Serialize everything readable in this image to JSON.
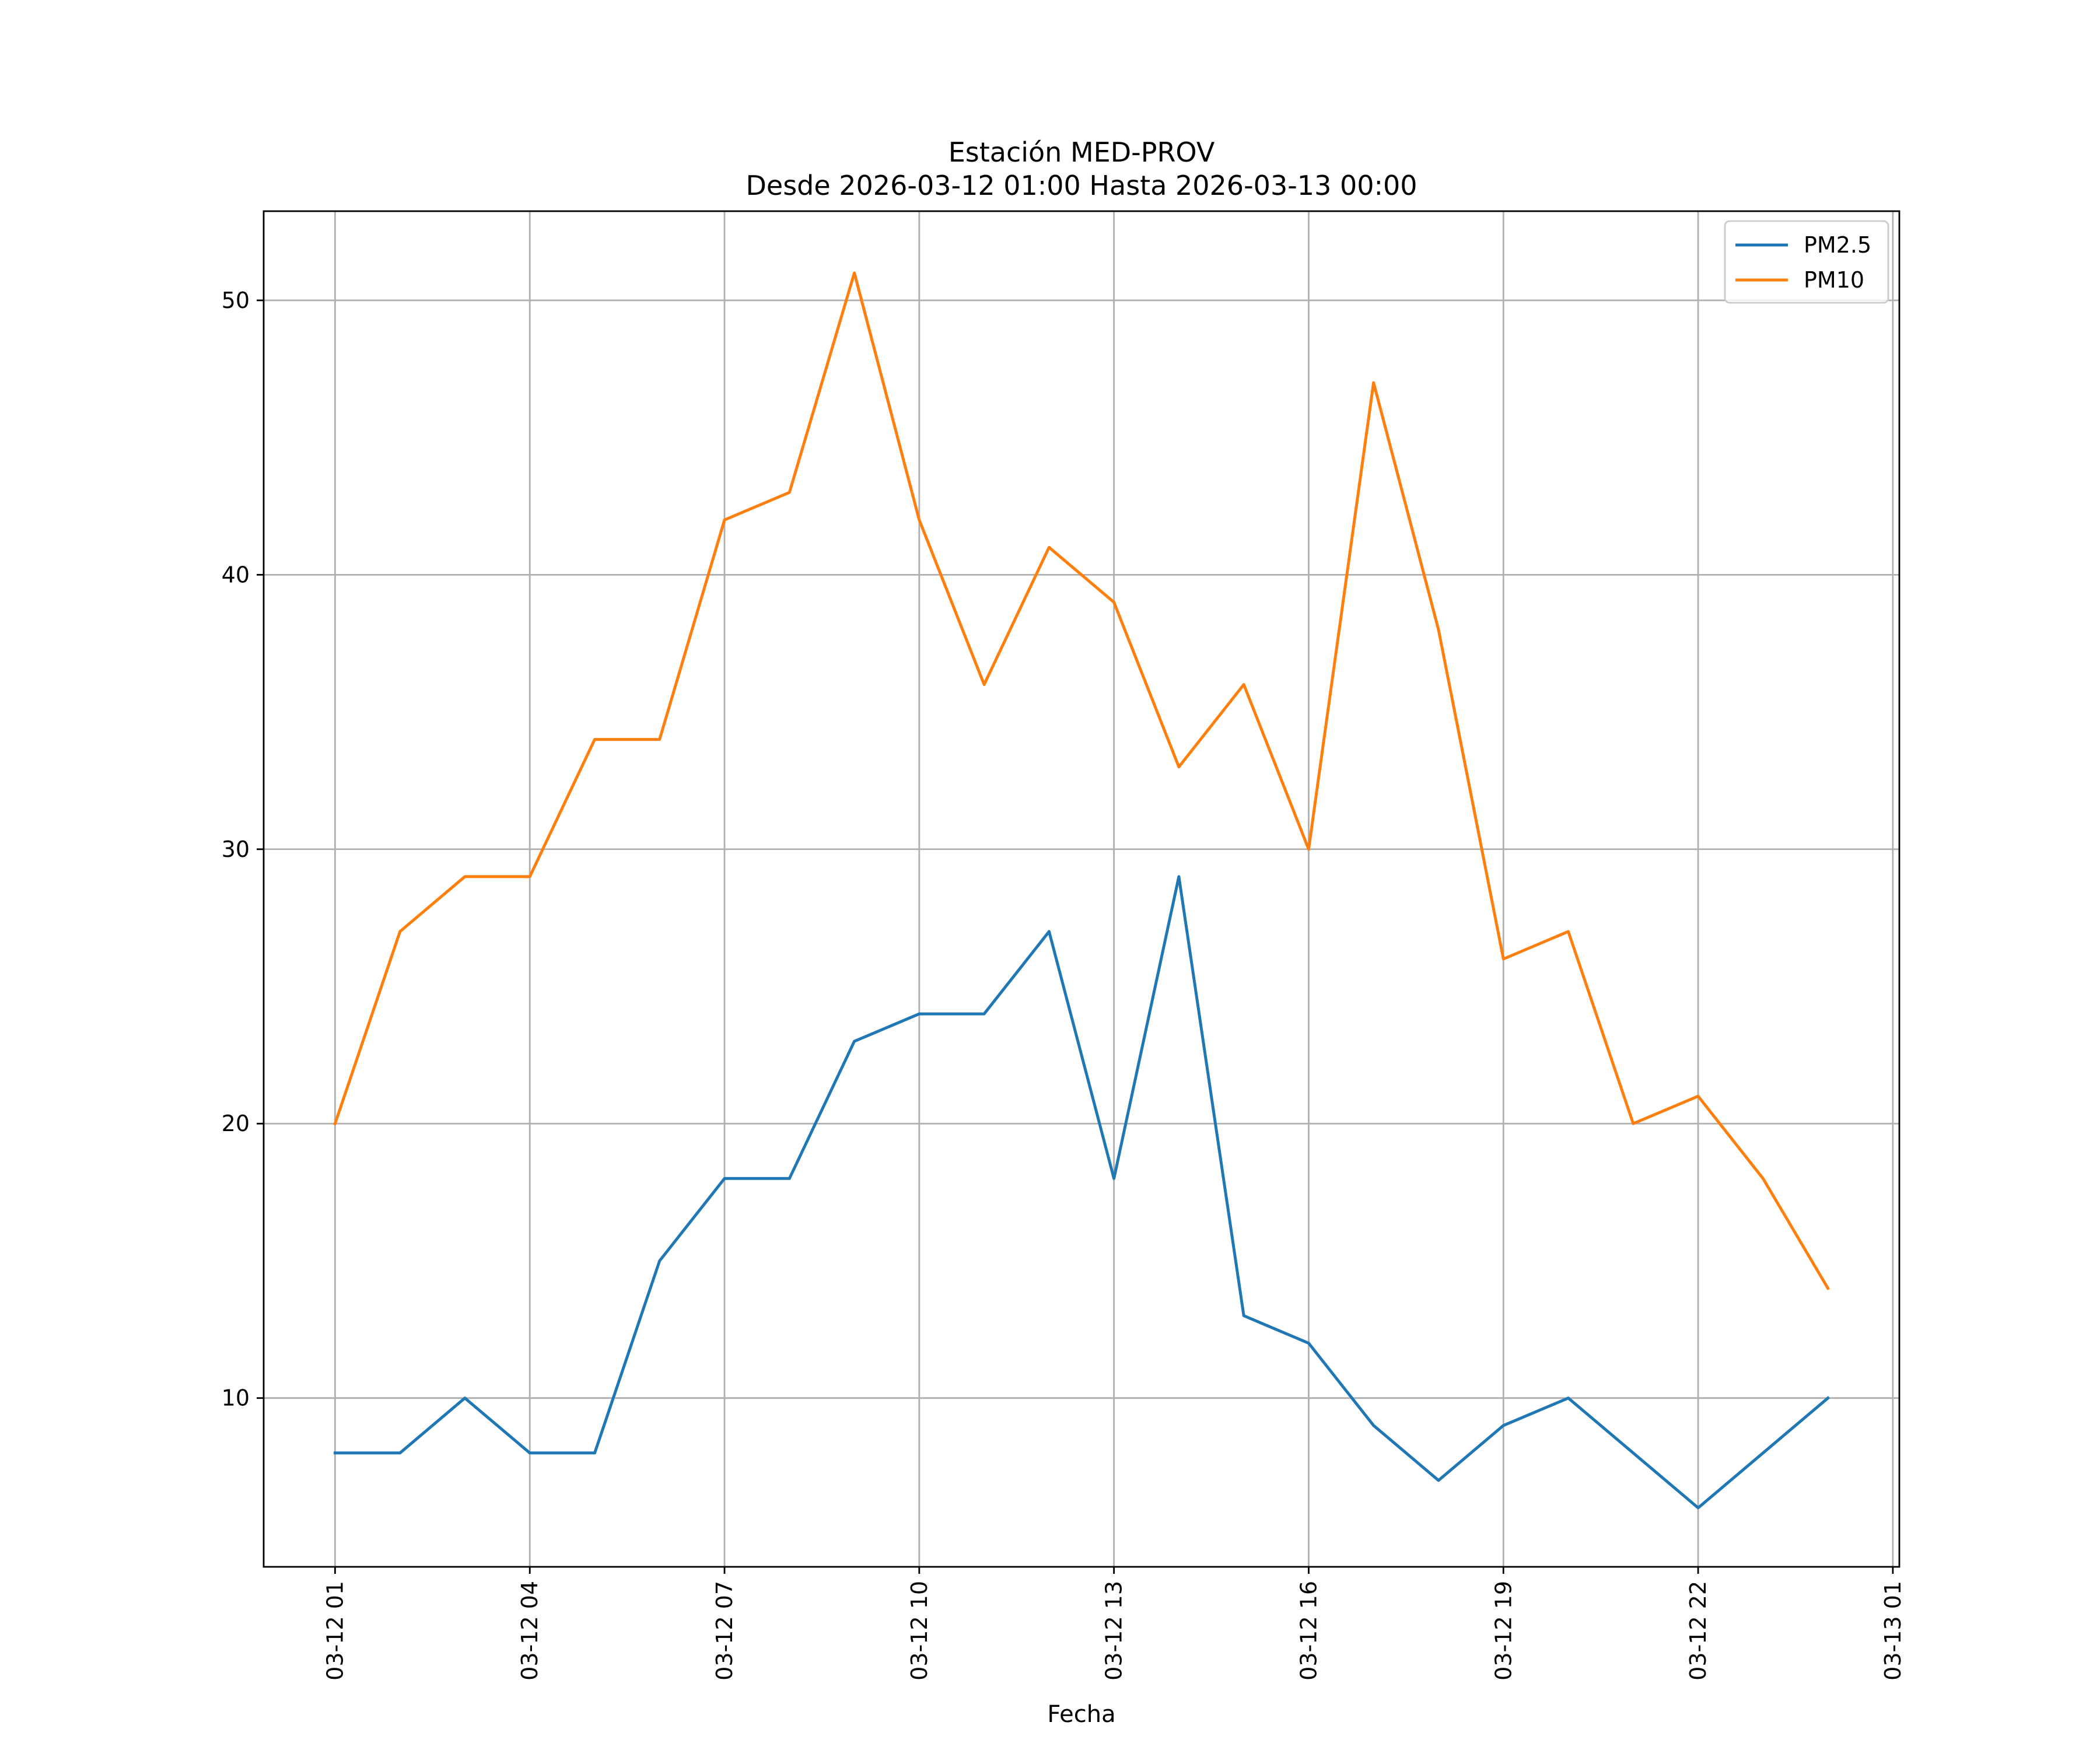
{
  "chart_data": {
    "type": "line",
    "title": "Estación MED-PROV",
    "subtitle": "Desde 2026-03-12 01:00 Hasta 2026-03-13 00:00",
    "xlabel": "Fecha",
    "ylabel": "",
    "x": [
      "2026-03-12 01:00",
      "2026-03-12 02:00",
      "2026-03-12 03:00",
      "2026-03-12 04:00",
      "2026-03-12 05:00",
      "2026-03-12 06:00",
      "2026-03-12 07:00",
      "2026-03-12 08:00",
      "2026-03-12 09:00",
      "2026-03-12 10:00",
      "2026-03-12 11:00",
      "2026-03-12 12:00",
      "2026-03-12 13:00",
      "2026-03-12 14:00",
      "2026-03-12 15:00",
      "2026-03-12 16:00",
      "2026-03-12 17:00",
      "2026-03-12 18:00",
      "2026-03-12 19:00",
      "2026-03-12 20:00",
      "2026-03-12 21:00",
      "2026-03-12 22:00",
      "2026-03-12 23:00",
      "2026-03-13 00:00"
    ],
    "x_hours": [
      1,
      2,
      3,
      4,
      5,
      6,
      7,
      8,
      9,
      10,
      11,
      12,
      13,
      14,
      15,
      16,
      17,
      18,
      19,
      20,
      21,
      22,
      23,
      24
    ],
    "xlim_hours": [
      -0.1,
      25.1
    ],
    "xtick_hours": [
      1,
      4,
      7,
      10,
      13,
      16,
      19,
      22,
      25
    ],
    "xtick_labels": [
      "03-12 01",
      "03-12 04",
      "03-12 07",
      "03-12 10",
      "03-12 13",
      "03-12 16",
      "03-12 19",
      "03-12 22",
      "03-13 01"
    ],
    "ylim": [
      3.85,
      53.25
    ],
    "yticks": [
      10,
      20,
      30,
      40,
      50
    ],
    "ytick_labels": [
      "10",
      "20",
      "30",
      "40",
      "50"
    ],
    "grid": true,
    "legend_position": "top-right",
    "series": [
      {
        "name": "PM2.5",
        "color": "#1f77b4",
        "values": [
          8,
          8,
          10,
          8,
          8,
          15,
          18,
          18,
          23,
          24,
          24,
          27,
          18,
          29,
          13,
          12,
          9,
          7,
          9,
          10,
          8,
          6,
          8,
          10
        ]
      },
      {
        "name": "PM10",
        "color": "#ff7f0e",
        "values": [
          20,
          27,
          29,
          29,
          34,
          34,
          42,
          43,
          51,
          42,
          36,
          41,
          39,
          33,
          36,
          30,
          47,
          38,
          26,
          27,
          20,
          21,
          18,
          14
        ]
      }
    ]
  }
}
